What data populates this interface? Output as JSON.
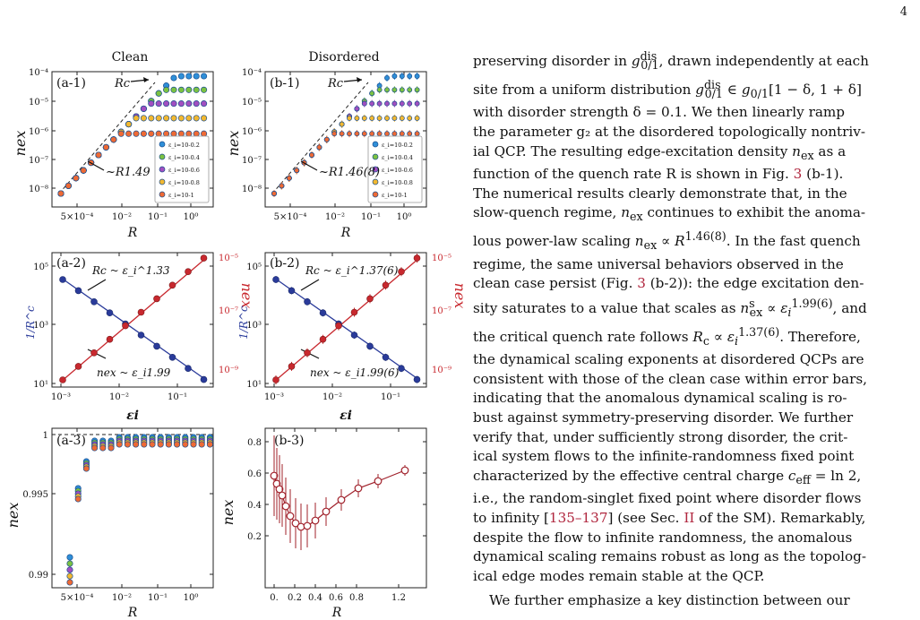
{
  "page": {
    "number": "4"
  },
  "figure": {
    "col_titles": [
      "Clean",
      "Disordered"
    ],
    "panels": {
      "a1": {
        "label": "(a-1)",
        "xlabel": "R",
        "ylabel": "n_ex",
        "marker": "R^c",
        "slope": "~R^1.49",
        "xticks": [
          "5×10⁻⁴",
          "10⁻²",
          "10⁻¹",
          "10⁰"
        ],
        "yticks": [
          "10⁻⁴",
          "10⁻⁵",
          "10⁻⁶",
          "10⁻⁷",
          "10⁻⁸"
        ]
      },
      "b1": {
        "label": "(b-1)",
        "xlabel": "R",
        "ylabel": "n_ex",
        "marker": "R^c",
        "slope": "~R^1.46(8)",
        "xticks": [
          "5×10⁻⁴",
          "10⁻²",
          "10⁻¹",
          "10⁰"
        ],
        "yticks": [
          "10⁻⁴",
          "10⁻⁵",
          "10⁻⁶",
          "10⁻⁷",
          "10⁻⁸"
        ]
      },
      "a2": {
        "label": "(a-2)",
        "xlabel": "ε_i",
        "ylabel_left": "1/R^c",
        "ylabel_right": "n^s_ex",
        "fit_top": "R^c ~ ε_i^1.33",
        "fit_bottom": "n^s_ex ~ ε_i^1.99",
        "xticks": [
          "10⁻³",
          "10⁻²",
          "10⁻¹"
        ],
        "yticks_left": [
          "10⁵",
          "10³",
          "10¹"
        ],
        "yticks_right": [
          "10⁻⁵",
          "10⁻⁷",
          "10⁻⁹"
        ]
      },
      "b2": {
        "label": "(b-2)",
        "xlabel": "ε_i",
        "ylabel_left": "1/R^c",
        "ylabel_right": "n^s_ex",
        "fit_top": "R^c ~ ε_i^1.37(6)",
        "fit_bottom": "n^s_ex ~ ε_i^1.99(6)",
        "xticks": [
          "10⁻³",
          "10⁻²",
          "10⁻¹"
        ],
        "yticks_left": [
          "10⁵",
          "10³",
          "10¹"
        ],
        "yticks_right": [
          "10⁻⁵",
          "10⁻⁷",
          "10⁻⁹"
        ]
      },
      "a3": {
        "label": "(a-3)",
        "xlabel": "R",
        "ylabel": "n_ex",
        "xticks": [
          "5×10⁻⁴",
          "10⁻²",
          "10⁻¹",
          "10⁰"
        ],
        "yticks": [
          "1",
          "0.995",
          "0.99"
        ]
      },
      "b3": {
        "label": "(b-3)",
        "xlabel": "R",
        "ylabel": "n_ex",
        "xticks": [
          "0.",
          "0.2",
          "0.4",
          "0.6",
          "0.8",
          "1.2"
        ],
        "yticks": [
          "0.8",
          "0.6",
          "0.4",
          "0.2"
        ]
      }
    },
    "legend": [
      "ε_i=10^-0.2",
      "ε_i=10^-0.4",
      "ε_i=10^-0.6",
      "ε_i=10^-0.8",
      "ε_i=10^-1"
    ],
    "colors": {
      "c1": "#2f8fd8",
      "c2": "#7cc242",
      "c3": "#a24fc0",
      "c4": "#f2b830",
      "c5": "#ee6a35",
      "blue": "#2a3b9a",
      "red": "#c8282e",
      "dark_red": "#a0202a"
    }
  },
  "text": {
    "para1_lines": [
      "preserving disorder in g_0/1^dis, drawn independently at each",
      "site from a uniform distribution g_0/1^dis ∈ g_0/1[1 − δ, 1 + δ]",
      "with disorder strength δ = 0.1. We then linearly ramp",
      "the parameter g₂ at the disordered topologically nontriv-",
      "ial QCP. The resulting edge-excitation density n_ex as a",
      "function of the quench rate R is shown in Fig. 3 (b-1).",
      "The numerical results clearly demonstrate that, in the",
      "slow-quench regime, n_ex continues to exhibit the anoma-",
      "lous power-law scaling n_ex ∝ R^1.46(8). In the fast quench",
      "regime, the same universal behaviors observed in the",
      "clean case persist (Fig. 3 (b-2)): the edge excitation den-",
      "sity saturates to a value that scales as n^s_ex ∝ ε_i^1.99(6), and",
      "the critical quench rate follows R_c ∝ ε_i^1.37(6). Therefore,",
      "the dynamical scaling exponents at disordered QCPs are",
      "consistent with those of the clean case within error bars,",
      "indicating that the anomalous dynamical scaling is ro-",
      "bust against symmetry-preserving disorder. We further",
      "verify that, under sufficiently strong disorder, the crit-",
      "ical system flows to the infinite-randomness fixed point",
      "characterized by the effective central charge c_eff = ln 2,",
      "i.e., the random-singlet fixed point where disorder flows",
      "to infinity [135–137] (see Sec. II of the SM). Remarkably,",
      "despite the flow to infinite randomness, the anomalous",
      "dynamical scaling remains robust as long as the topolog-",
      "ical edge modes remain stable at the QCP."
    ],
    "para2_start": "We further emphasize a key distinction between our"
  }
}
